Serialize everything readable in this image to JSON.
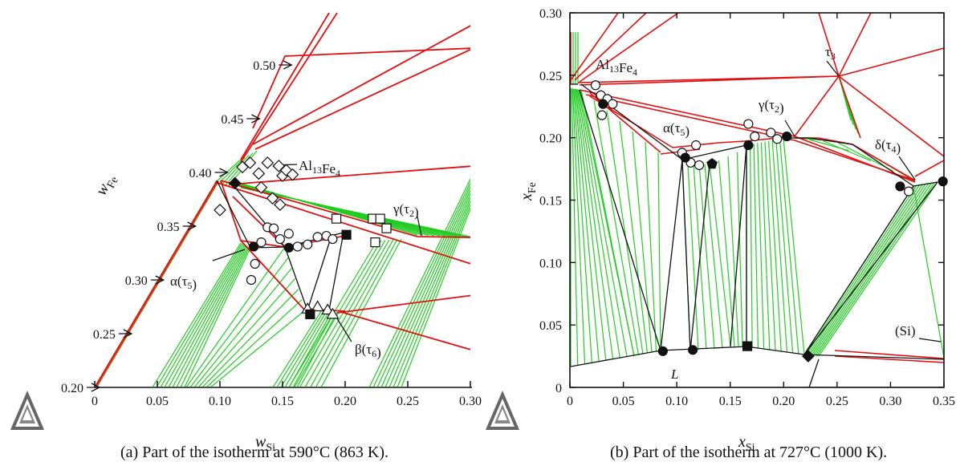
{
  "captions": {
    "a": "(a) Part of the isotherm at 590°C (863 K).",
    "b": "(b) Part of the isotherm at 727°C (1000 K)."
  },
  "logo": "triangle-logo",
  "colors": {
    "phase_boundary": "#e01010",
    "tie_line": "#22cc22",
    "black_line": "#111111",
    "axis": "#111111"
  },
  "chart_data": [
    {
      "type": "scatter",
      "xlabel": "wSi",
      "ylabel": "wFe",
      "xlim": [
        0,
        0.3
      ],
      "ylim": [
        0.2,
        0.52
      ],
      "x_ticks": [
        "0",
        "0.05",
        "0.10",
        "0.15",
        "0.20",
        "0.25",
        "0.30"
      ],
      "y_ticks": [
        {
          "value": 0.2,
          "label": "0.20"
        },
        {
          "value": 0.25,
          "label": "0.25"
        },
        {
          "value": 0.3,
          "label": "0.30"
        },
        {
          "value": 0.35,
          "label": "0.35"
        },
        {
          "value": 0.4,
          "label": "0.40"
        },
        {
          "value": 0.45,
          "label": "0.45"
        },
        {
          "value": 0.5,
          "label": "0.50"
        }
      ],
      "annotations": [
        "Al13Fe4",
        "γ(τ2)",
        "α(τ5)",
        "β(τ6)"
      ],
      "filled_circles": [
        [
          0.127,
          0.331
        ],
        [
          0.155,
          0.33
        ]
      ],
      "filled_diamonds": [
        [
          0.112,
          0.39
        ]
      ],
      "filled_squares": [
        [
          0.201,
          0.342
        ],
        [
          0.172,
          0.268
        ]
      ],
      "open_circles": [
        [
          0.125,
          0.3
        ],
        [
          0.128,
          0.315
        ],
        [
          0.133,
          0.335
        ],
        [
          0.138,
          0.349
        ],
        [
          0.143,
          0.348
        ],
        [
          0.148,
          0.338
        ],
        [
          0.155,
          0.343
        ],
        [
          0.162,
          0.331
        ],
        [
          0.17,
          0.333
        ],
        [
          0.178,
          0.34
        ],
        [
          0.185,
          0.341
        ],
        [
          0.19,
          0.338
        ]
      ],
      "open_diamonds": [
        [
          0.1,
          0.365
        ],
        [
          0.118,
          0.405
        ],
        [
          0.124,
          0.409
        ],
        [
          0.131,
          0.399
        ],
        [
          0.138,
          0.409
        ],
        [
          0.147,
          0.406
        ],
        [
          0.15,
          0.397
        ],
        [
          0.153,
          0.402
        ],
        [
          0.158,
          0.398
        ],
        [
          0.133,
          0.386
        ],
        [
          0.142,
          0.376
        ],
        [
          0.148,
          0.37
        ]
      ],
      "open_squares": [
        [
          0.193,
          0.357
        ],
        [
          0.222,
          0.357
        ],
        [
          0.228,
          0.357
        ],
        [
          0.224,
          0.335
        ],
        [
          0.233,
          0.348
        ]
      ],
      "open_triangles": [
        [
          0.17,
          0.273
        ],
        [
          0.178,
          0.275
        ],
        [
          0.186,
          0.272
        ],
        [
          0.19,
          0.268
        ]
      ]
    },
    {
      "type": "scatter",
      "xlabel": "xSi",
      "ylabel": "xFe",
      "xlim": [
        0,
        0.35
      ],
      "ylim": [
        0,
        0.3
      ],
      "x_ticks": [
        "0",
        "0.05",
        "0.10",
        "0.15",
        "0.20",
        "0.25",
        "0.30",
        "0.35"
      ],
      "y_ticks": [
        {
          "value": 0.0,
          "label": "0"
        },
        {
          "value": 0.05,
          "label": "0.05"
        },
        {
          "value": 0.1,
          "label": "0.10"
        },
        {
          "value": 0.15,
          "label": "0.15"
        },
        {
          "value": 0.2,
          "label": "0.20"
        },
        {
          "value": 0.25,
          "label": "0.25"
        },
        {
          "value": 0.3,
          "label": "0.30"
        }
      ],
      "annotations": [
        "Al13Fe4",
        "τ3",
        "γ(τ2)",
        "α(τ5)",
        "δ(τ4)",
        "L",
        "(Si)"
      ],
      "filled_circles": [
        [
          0.031,
          0.227
        ],
        [
          0.108,
          0.184
        ],
        [
          0.167,
          0.194
        ],
        [
          0.203,
          0.201
        ],
        [
          0.309,
          0.161
        ],
        [
          0.087,
          0.029
        ],
        [
          0.115,
          0.03
        ],
        [
          0.349,
          0.165
        ]
      ],
      "filled_pentagons": [
        [
          0.133,
          0.179
        ]
      ],
      "filled_squares": [
        [
          0.166,
          0.033
        ]
      ],
      "filled_diamonds": [
        [
          0.223,
          0.025
        ]
      ],
      "open_circles": [
        [
          0.029,
          0.234
        ],
        [
          0.035,
          0.231
        ],
        [
          0.04,
          0.227
        ],
        [
          0.03,
          0.218
        ],
        [
          0.105,
          0.188
        ],
        [
          0.118,
          0.194
        ],
        [
          0.113,
          0.18
        ],
        [
          0.121,
          0.178
        ],
        [
          0.167,
          0.211
        ],
        [
          0.173,
          0.201
        ],
        [
          0.188,
          0.204
        ],
        [
          0.194,
          0.199
        ],
        [
          0.317,
          0.157
        ],
        [
          0.024,
          0.242
        ]
      ]
    }
  ]
}
